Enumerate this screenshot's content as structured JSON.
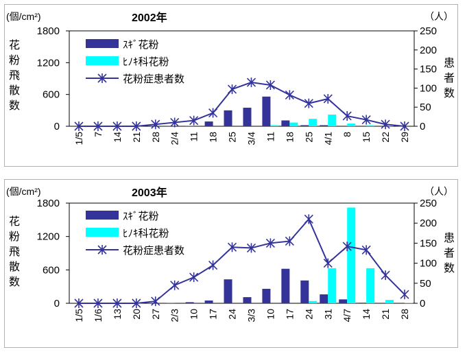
{
  "charts": [
    {
      "type": "bar+line",
      "title": "2002年",
      "y_left_unit": "(個/cm²)",
      "y_left_label": [
        "花",
        "粉",
        "飛",
        "散",
        "数"
      ],
      "y_right_unit": "（人）",
      "y_right_label": [
        "患",
        "者",
        "数"
      ],
      "y_left_ticks": [
        "0",
        "600",
        "1200",
        "1800"
      ],
      "y_right_ticks": [
        "0",
        "50",
        "100",
        "150",
        "200",
        "250"
      ],
      "ylim_left": [
        0,
        1800
      ],
      "ylim_right": [
        0,
        250
      ],
      "categories": [
        "1/5",
        "7",
        "14",
        "21",
        "28",
        "2/4",
        "11",
        "18",
        "25",
        "3/4",
        "11",
        "18",
        "25",
        "4/1",
        "8",
        "15",
        "22",
        "29"
      ],
      "series": [
        {
          "name": "ｽｷﾞ花粉",
          "kind": "bar",
          "axis": "left",
          "color": "#333399",
          "values": [
            0,
            0,
            0,
            0,
            0,
            2,
            5,
            90,
            300,
            350,
            560,
            110,
            20,
            20,
            0,
            0,
            0,
            0
          ]
        },
        {
          "name": "ﾋﾉｷ科花粉",
          "kind": "bar",
          "axis": "left",
          "color": "#00ffff",
          "values": [
            0,
            0,
            0,
            0,
            0,
            0,
            0,
            0,
            0,
            0,
            20,
            70,
            140,
            220,
            50,
            20,
            5,
            0
          ]
        },
        {
          "name": "花粉症患者数",
          "kind": "line",
          "axis": "right",
          "color": "#333399",
          "values": [
            0,
            0,
            0,
            0,
            5,
            10,
            15,
            35,
            97,
            115,
            108,
            82,
            60,
            72,
            27,
            17,
            5,
            0
          ]
        }
      ]
    },
    {
      "type": "bar+line",
      "title": "2003年",
      "y_left_unit": "(個/cm²)",
      "y_left_label": [
        "花",
        "粉",
        "飛",
        "散",
        "数"
      ],
      "y_right_unit": "（人）",
      "y_right_label": [
        "患",
        "者",
        "数"
      ],
      "y_left_ticks": [
        "0",
        "600",
        "1200",
        "1800"
      ],
      "y_right_ticks": [
        "0",
        "50",
        "100",
        "150",
        "200",
        "250"
      ],
      "ylim_left": [
        0,
        1800
      ],
      "ylim_right": [
        0,
        250
      ],
      "categories": [
        "1/5",
        "1/6",
        "13",
        "20",
        "27",
        "2/3",
        "10",
        "17",
        "24",
        "3/3",
        "10",
        "17",
        "24",
        "31",
        "4/7",
        "14",
        "21",
        "28"
      ],
      "series": [
        {
          "name": "ｽｷﾞ花粉",
          "kind": "bar",
          "axis": "left",
          "color": "#333399",
          "values": [
            0,
            0,
            0,
            0,
            0,
            5,
            20,
            50,
            430,
            110,
            260,
            620,
            410,
            160,
            70,
            10,
            0,
            0
          ]
        },
        {
          "name": "ﾋﾉｷ科花粉",
          "kind": "bar",
          "axis": "left",
          "color": "#00ffff",
          "values": [
            0,
            0,
            0,
            0,
            0,
            0,
            0,
            0,
            0,
            0,
            0,
            0,
            40,
            630,
            1720,
            630,
            60,
            10
          ]
        },
        {
          "name": "花粉症患者数",
          "kind": "line",
          "axis": "right",
          "color": "#333399",
          "values": [
            0,
            0,
            0,
            0,
            5,
            45,
            65,
            95,
            140,
            138,
            150,
            155,
            210,
            100,
            142,
            133,
            70,
            22
          ]
        }
      ]
    }
  ]
}
